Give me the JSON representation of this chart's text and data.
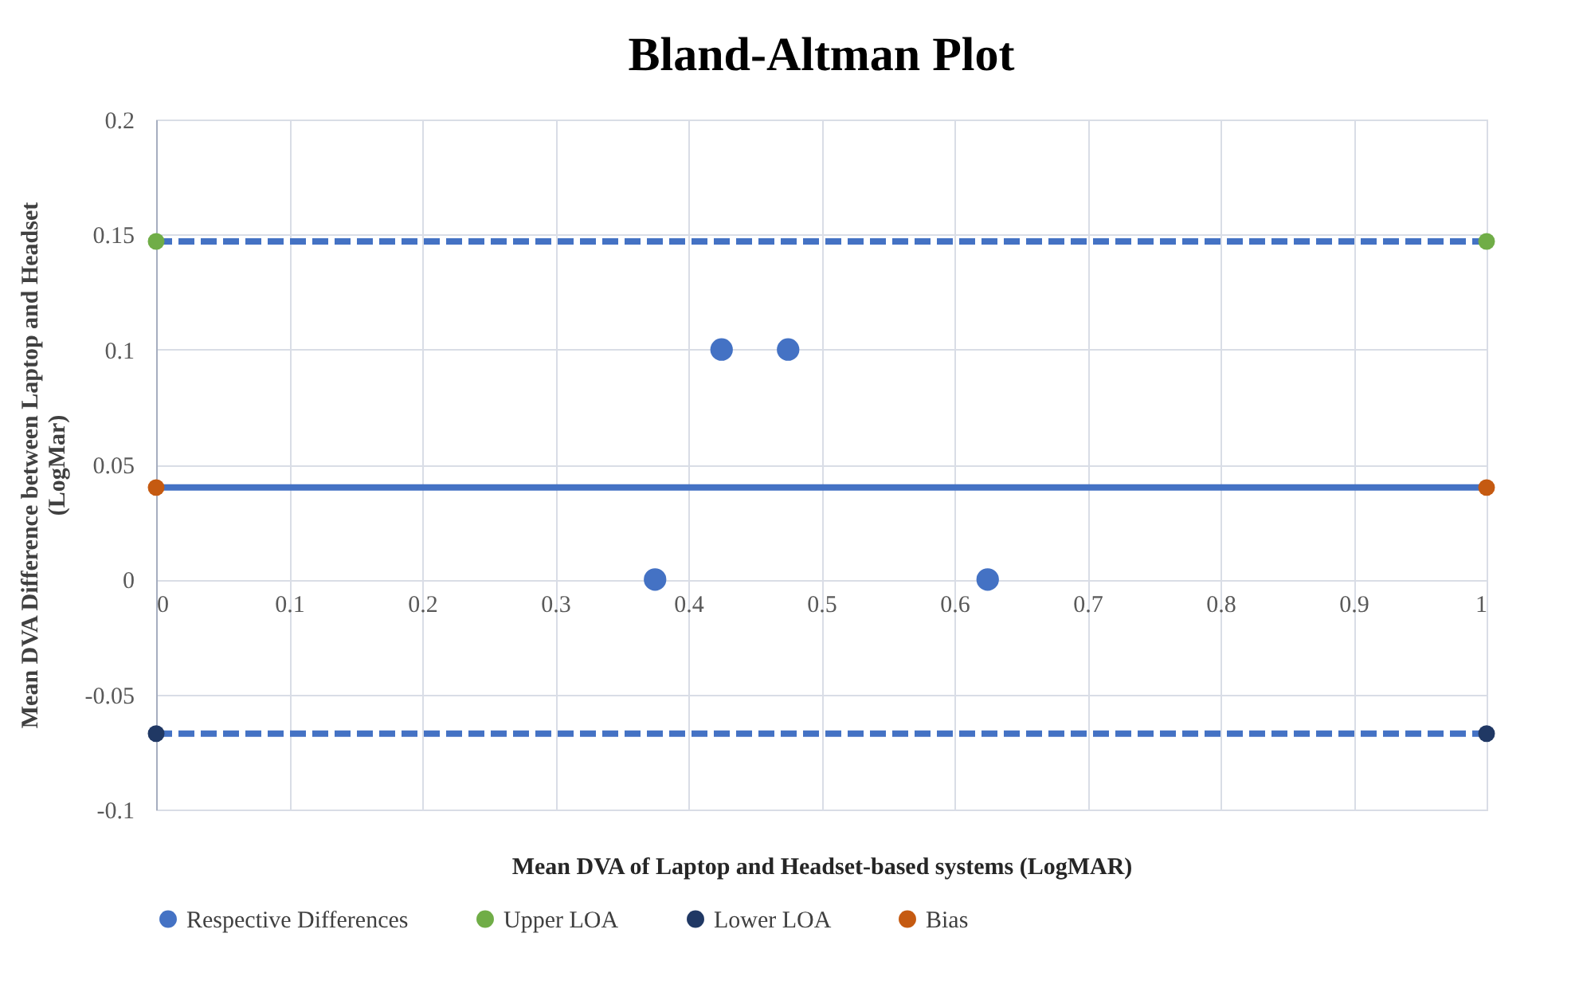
{
  "chart_data": {
    "type": "scatter",
    "title": "Bland-Altman Plot",
    "xlabel": "Mean DVA of Laptop and Headset-based systems (LogMAR)",
    "ylabel": "Mean DVA Difference between Laptop and Headset (LogMar)",
    "xlim": [
      0,
      1
    ],
    "xticks": [
      0,
      0.1,
      0.2,
      0.3,
      0.4,
      0.5,
      0.6,
      0.7,
      0.8,
      0.9,
      1
    ],
    "ylim": [
      -0.1,
      0.2
    ],
    "yticks": [
      -0.1,
      -0.05,
      0,
      0.05,
      0.1,
      0.15,
      0.2
    ],
    "grid": true,
    "legend": "bottom",
    "marker": "circle",
    "series": [
      {
        "name": "Respective Differences",
        "type": "scatter",
        "color": "#4472c4",
        "x": [
          0.375,
          0.425,
          0.475,
          0.625
        ],
        "values": [
          0,
          0.1,
          0.1,
          0
        ]
      },
      {
        "name": "Upper LOA",
        "type": "line",
        "line_style": "dashed",
        "color": "#70ad47",
        "x": [
          0,
          1
        ],
        "values": [
          0.147,
          0.147
        ]
      },
      {
        "name": "Lower LOA",
        "type": "line",
        "line_style": "dashed",
        "color": "#203864",
        "x": [
          0,
          1
        ],
        "values": [
          -0.067,
          -0.067
        ]
      },
      {
        "name": "Bias",
        "type": "line",
        "line_style": "solid",
        "color": "#c55a11",
        "x": [
          0,
          1
        ],
        "values": [
          0.04,
          0.04
        ]
      }
    ]
  }
}
